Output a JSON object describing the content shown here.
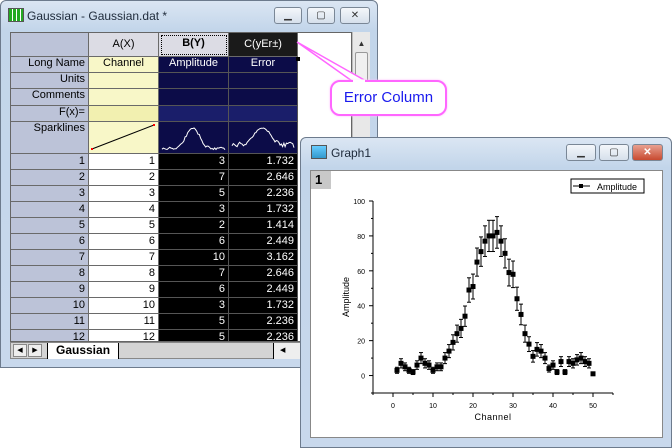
{
  "worksheet": {
    "title": "Gaussian - Gaussian.dat *",
    "columns": [
      {
        "header": "A(X)",
        "long_name": "Channel"
      },
      {
        "header": "B(Y)",
        "long_name": "Amplitude"
      },
      {
        "header": "C(yEr±)",
        "long_name": "Error"
      }
    ],
    "row_labels": {
      "long_name": "Long Name",
      "units": "Units",
      "comments": "Comments",
      "fx": "F(x)=",
      "sparklines": "Sparklines"
    },
    "rows": [
      [
        1,
        1,
        3,
        "1.732"
      ],
      [
        2,
        2,
        7,
        "2.646"
      ],
      [
        3,
        3,
        5,
        "2.236"
      ],
      [
        4,
        4,
        3,
        "1.732"
      ],
      [
        5,
        5,
        2,
        "1.414"
      ],
      [
        6,
        6,
        6,
        "2.449"
      ],
      [
        7,
        7,
        10,
        "3.162"
      ],
      [
        8,
        8,
        7,
        "2.646"
      ],
      [
        9,
        9,
        6,
        "2.449"
      ],
      [
        10,
        10,
        3,
        "1.732"
      ],
      [
        11,
        11,
        5,
        "2.236"
      ],
      [
        12,
        12,
        5,
        "2.236"
      ]
    ],
    "sheet_tab": "Gaussian",
    "colors": {
      "selected_bg": "#0c0c48",
      "x_column_bg": "#f8f7c8",
      "row_header_bg": "#bcc3d8"
    }
  },
  "callout": {
    "text": "Error Column",
    "color": "#ff66ff"
  },
  "graph": {
    "title": "Graph1",
    "layer_label": "1",
    "legend": "Amplitude"
  },
  "chart_data": {
    "type": "scatter",
    "xlabel": "Channel",
    "ylabel": "Amplitude",
    "xlim": [
      -5,
      55
    ],
    "ylim": [
      -10,
      100
    ],
    "xticks": [
      0,
      10,
      20,
      30,
      40,
      50
    ],
    "yticks": [
      0,
      20,
      40,
      60,
      80,
      100
    ],
    "grid": false,
    "legend_position": "top-right",
    "series": [
      {
        "name": "Amplitude",
        "x": [
          1,
          2,
          3,
          4,
          5,
          6,
          7,
          8,
          9,
          10,
          11,
          12,
          13,
          14,
          15,
          16,
          17,
          18,
          19,
          20,
          21,
          22,
          23,
          24,
          25,
          26,
          27,
          28,
          29,
          30,
          31,
          32,
          33,
          34,
          35,
          36,
          37,
          38,
          39,
          40,
          41,
          42,
          43,
          44,
          45,
          46,
          47,
          48,
          49,
          50
        ],
        "y": [
          3,
          7,
          5,
          3,
          2,
          6,
          10,
          7,
          6,
          3,
          5,
          5,
          10,
          14,
          19,
          24,
          27,
          34,
          49,
          51,
          65,
          71,
          77,
          80,
          80,
          82,
          77,
          70,
          59,
          58,
          44,
          35,
          24,
          18,
          11,
          15,
          14,
          10,
          4,
          6,
          2,
          8,
          2,
          8,
          7,
          9,
          10,
          8,
          7,
          1
        ],
        "error": "sqrt(y)"
      }
    ]
  }
}
